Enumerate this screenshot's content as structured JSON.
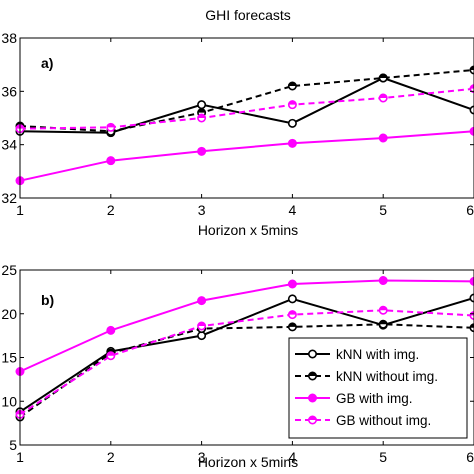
{
  "chart_data": [
    {
      "type": "line",
      "panel_label": "a)",
      "title": "GHI forecasts",
      "xlabel": "Horizon x 5mins",
      "ylabel": "",
      "x": [
        1,
        2,
        3,
        4,
        5,
        6
      ],
      "xlim": [
        1,
        6
      ],
      "ylim": [
        32,
        38
      ],
      "xticks": [
        "1",
        "2",
        "3",
        "4",
        "5",
        "6"
      ],
      "yticks": [
        "32",
        "34",
        "36",
        "38"
      ],
      "grid": false,
      "series": [
        {
          "name": "kNN with img.",
          "color": "#000000",
          "dash": "solid",
          "marker": "filled",
          "values": [
            34.5,
            34.45,
            35.5,
            34.8,
            36.5,
            35.3
          ]
        },
        {
          "name": "kNN without img.",
          "color": "#000000",
          "dash": "dashed",
          "marker": "half",
          "values": [
            34.7,
            34.5,
            35.2,
            36.2,
            36.5,
            36.8
          ]
        },
        {
          "name": "GB with img.",
          "color": "#ff00ff",
          "dash": "solid",
          "marker": "filled",
          "values": [
            32.65,
            33.4,
            33.75,
            34.05,
            34.25,
            34.5
          ]
        },
        {
          "name": "GB without img.",
          "color": "#ff00ff",
          "dash": "dashed",
          "marker": "half",
          "values": [
            34.6,
            34.65,
            35.0,
            35.5,
            35.75,
            36.1
          ]
        }
      ]
    },
    {
      "type": "line",
      "panel_label": "b)",
      "title": "",
      "xlabel": "Horizon x 5mins",
      "ylabel": "",
      "x": [
        1,
        2,
        3,
        4,
        5,
        6
      ],
      "xlim": [
        1,
        6
      ],
      "ylim": [
        5,
        25
      ],
      "xticks": [
        "1",
        "2",
        "3",
        "4",
        "5",
        "6"
      ],
      "yticks": [
        "5",
        "10",
        "15",
        "20",
        "25"
      ],
      "grid": false,
      "legend_position": "bottom-right",
      "series": [
        {
          "name": "kNN with img.",
          "color": "#000000",
          "dash": "solid",
          "marker": "filled",
          "values": [
            8.8,
            15.7,
            17.5,
            21.7,
            18.7,
            21.8
          ]
        },
        {
          "name": "kNN without img.",
          "color": "#000000",
          "dash": "dashed",
          "marker": "half",
          "values": [
            8.2,
            15.5,
            18.3,
            18.5,
            18.8,
            18.4
          ]
        },
        {
          "name": "GB with img.",
          "color": "#ff00ff",
          "dash": "solid",
          "marker": "filled",
          "values": [
            13.4,
            18.1,
            21.5,
            23.4,
            23.8,
            23.7
          ]
        },
        {
          "name": "GB without img.",
          "color": "#ff00ff",
          "dash": "dashed",
          "marker": "half",
          "values": [
            8.5,
            15.2,
            18.6,
            19.9,
            20.4,
            19.8
          ]
        }
      ]
    }
  ]
}
